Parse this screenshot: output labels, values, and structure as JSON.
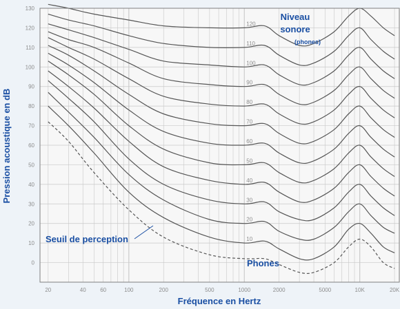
{
  "colors": {
    "background": "#eef3f8",
    "plot_background": "#f7f7f7",
    "grid": "#c8c8c8",
    "curve": "#555555",
    "label_blue": "#1a4fa3",
    "frame": "#7f7f7f"
  },
  "annotations": {
    "legend_line1": "Niveau",
    "legend_line2": "sonore",
    "legend_line3": "(phones)",
    "threshold": "Seuil de perception",
    "phones": "Phones"
  },
  "chart_data": {
    "type": "line",
    "title": "",
    "xlabel": "Fréquence en Hertz",
    "ylabel": "Pression acoustique en dB",
    "xscale": "log",
    "xlim": [
      17,
      22000
    ],
    "ylim": [
      -10,
      130
    ],
    "grid": true,
    "x_tick_labels": [
      "20",
      "40",
      "60",
      "100",
      "200",
      "500",
      "1000",
      "2000",
      "5000",
      "10K",
      "20K"
    ],
    "y_tick_labels": [
      "0",
      "10",
      "20",
      "30",
      "40",
      "50",
      "60",
      "70",
      "80",
      "90",
      "100",
      "110",
      "120",
      "130"
    ],
    "curve_labels": [
      "10",
      "20",
      "30",
      "40",
      "50",
      "60",
      "70",
      "80",
      "90",
      "100",
      "110",
      "120"
    ],
    "x": [
      20,
      30,
      50,
      100,
      200,
      500,
      1000,
      1500,
      2000,
      3000,
      4000,
      6000,
      8000,
      10000,
      12500,
      16000,
      20000
    ],
    "series": [
      {
        "values": [
          72,
          62,
          46,
          27,
          13,
          4,
          2,
          2,
          -1,
          -5,
          -5,
          0,
          8,
          12,
          8,
          0,
          -3
        ]
      },
      {
        "values": [
          80,
          70,
          56,
          36,
          23,
          13,
          10,
          11,
          7,
          2,
          2,
          8,
          17,
          20,
          15,
          8,
          5
        ]
      },
      {
        "values": [
          87,
          77,
          64,
          45,
          32,
          22,
          20,
          21,
          16,
          12,
          12,
          18,
          26,
          30,
          24,
          18,
          15
        ]
      },
      {
        "values": [
          93,
          84,
          72,
          53,
          40,
          32,
          30,
          31,
          26,
          22,
          22,
          28,
          36,
          40,
          34,
          28,
          24
        ]
      },
      {
        "values": [
          98,
          90,
          79,
          62,
          49,
          42,
          40,
          41,
          36,
          31,
          32,
          38,
          46,
          50,
          44,
          38,
          34
        ]
      },
      {
        "values": [
          103,
          96,
          86,
          70,
          58,
          51,
          50,
          51,
          46,
          41,
          42,
          48,
          56,
          60,
          54,
          48,
          44
        ]
      },
      {
        "values": [
          107,
          101,
          92,
          78,
          67,
          61,
          60,
          61,
          56,
          51,
          52,
          58,
          66,
          70,
          64,
          58,
          54
        ]
      },
      {
        "values": [
          111,
          106,
          98,
          86,
          76,
          71,
          70,
          71,
          66,
          61,
          62,
          68,
          76,
          80,
          74,
          68,
          64
        ]
      },
      {
        "values": [
          115,
          110,
          104,
          94,
          85,
          81,
          80,
          81,
          76,
          71,
          72,
          78,
          86,
          90,
          84,
          78,
          74
        ]
      },
      {
        "values": [
          118,
          114,
          110,
          102,
          94,
          91,
          90,
          91,
          86,
          81,
          82,
          88,
          96,
          100,
          94,
          88,
          84
        ]
      },
      {
        "values": [
          122,
          119,
          115,
          109,
          103,
          101,
          100,
          101,
          96,
          91,
          92,
          98,
          106,
          110,
          104,
          98,
          94
        ]
      },
      {
        "values": [
          127,
          124,
          121,
          116,
          112,
          110,
          110,
          111,
          106,
          101,
          102,
          108,
          116,
          120,
          114,
          108,
          104
        ]
      },
      {
        "values": [
          132,
          130,
          127,
          124,
          121,
          120,
          120,
          121,
          116,
          111,
          112,
          118,
          126,
          130,
          126,
          120,
          116
        ]
      }
    ]
  }
}
